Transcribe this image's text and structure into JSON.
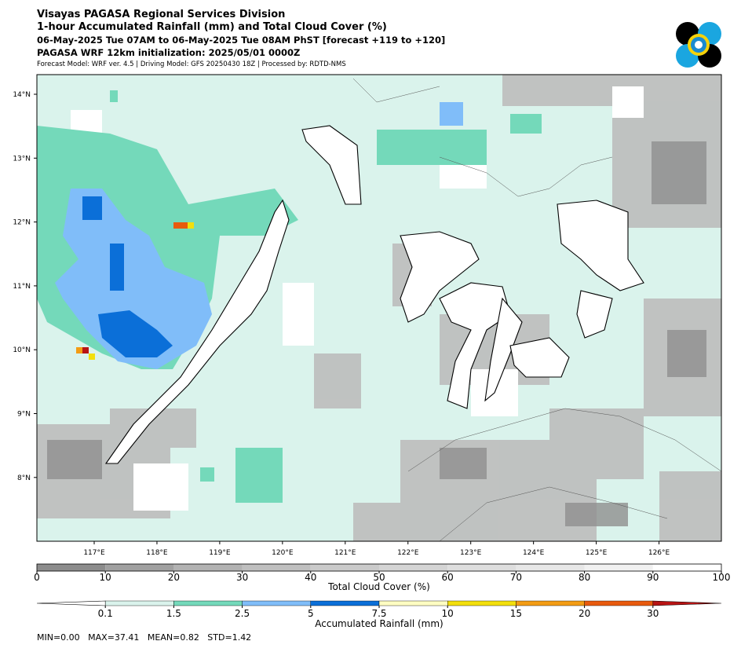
{
  "header": {
    "title": "Visayas PAGASA Regional Services Division",
    "subtitle": "1-hour Accumulated Rainfall (mm) and Total Cloud Cover (%)",
    "valid_time": "06-May-2025 Tue 07AM to 06-May-2025 Tue 08AM PhST [forecast +119 to +120]",
    "model_init": "PAGASA WRF 12km initialization: 2025/05/01 0000Z",
    "model_info": "Forecast Model: WRF ver. 4.5 | Driving Model: GFS 20250430 18Z | Processed by: RDTD-NMS"
  },
  "map": {
    "lat_ticks": [
      {
        "value": 14,
        "label": "14°N"
      },
      {
        "value": 13,
        "label": "13°N"
      },
      {
        "value": 12,
        "label": "12°N"
      },
      {
        "value": 11,
        "label": "11°N"
      },
      {
        "value": 10,
        "label": "10°N"
      },
      {
        "value": 9,
        "label": "9°N"
      },
      {
        "value": 8,
        "label": "8°N"
      }
    ],
    "lon_ticks": [
      {
        "value": 117,
        "label": "117°E"
      },
      {
        "value": 118,
        "label": "118°E"
      },
      {
        "value": 119,
        "label": "119°E"
      },
      {
        "value": 120,
        "label": "120°E"
      },
      {
        "value": 121,
        "label": "121°E"
      },
      {
        "value": 122,
        "label": "122°E"
      },
      {
        "value": 123,
        "label": "123°E"
      },
      {
        "value": 124,
        "label": "124°E"
      },
      {
        "value": 125,
        "label": "125°E"
      },
      {
        "value": 126,
        "label": "126°E"
      }
    ]
  },
  "cloud_colorbar": {
    "label": "Total Cloud Cover (%)",
    "ticks": [
      0,
      10,
      20,
      30,
      40,
      50,
      60,
      70,
      80,
      90,
      100
    ],
    "colors": [
      "#8c8c8c",
      "#a0a0a0",
      "#b2b2b2",
      "#bfbfbf",
      "#cacaca",
      "#d4d4d4",
      "#dedede",
      "#e7e7e7",
      "#f1f1f1",
      "#ffffff"
    ]
  },
  "rainfall_colorbar": {
    "label": "Accumulated Rainfall (mm)",
    "ticks": [
      0.1,
      1.5,
      2.5,
      5,
      7.5,
      10,
      15,
      20,
      30
    ],
    "colors": [
      "#daf3ec",
      "#74d9ba",
      "#80bdf9",
      "#0b6fd8",
      "#fffdc2",
      "#f3df0c",
      "#f39c14",
      "#e85a0e"
    ],
    "under_color": "#ffffff",
    "over_color": "#b81414"
  },
  "stats": "MIN=0.00   MAX=37.41   MEAN=0.82   STD=1.42"
}
